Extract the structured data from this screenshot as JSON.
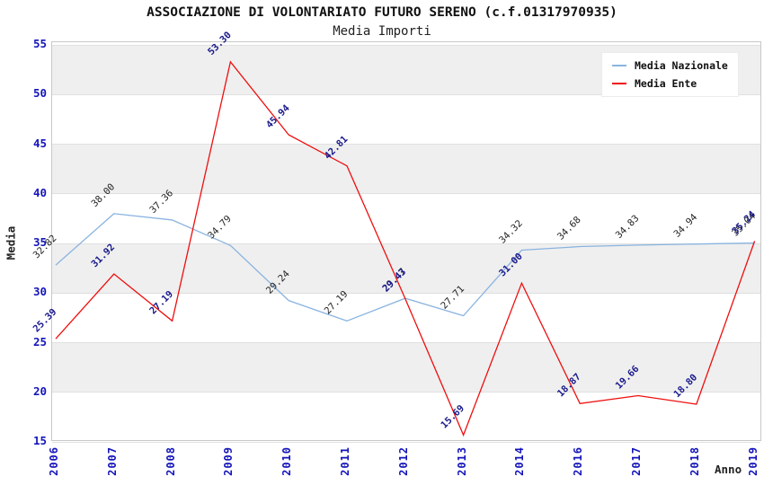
{
  "header": {
    "title": "ASSOCIAZIONE DI VOLONTARIATO FUTURO SERENO (c.f.01317970935)",
    "subtitle": "Media Importi"
  },
  "chart_data": {
    "type": "line",
    "title": "ASSOCIAZIONE DI VOLONTARIATO FUTURO SERENO (c.f.01317970935)",
    "subtitle": "Media Importi",
    "xlabel": "Anno",
    "ylabel": "Media",
    "ylim": [
      15,
      55
    ],
    "ytick_step": 5,
    "grid": true,
    "band_fill": "#efefef",
    "legend_position": "top-right",
    "categories": [
      "2006",
      "2007",
      "2008",
      "2009",
      "2010",
      "2011",
      "2012",
      "2013",
      "2014",
      "2016",
      "2017",
      "2018",
      "2019"
    ],
    "series": [
      {
        "name": "Media Nazionale",
        "color": "#8ab4e0",
        "label_color": "#222222",
        "label_bold": false,
        "values": [
          32.82,
          38.0,
          37.36,
          34.79,
          29.24,
          27.19,
          29.47,
          27.71,
          34.32,
          34.68,
          34.83,
          34.94,
          35.04
        ]
      },
      {
        "name": "Media Ente",
        "color": "#ee0f0f",
        "label_color": "#1a1a8c",
        "label_bold": true,
        "values": [
          25.39,
          31.92,
          27.19,
          53.3,
          45.94,
          42.81,
          29.43,
          15.69,
          31.0,
          18.87,
          19.66,
          18.8,
          35.24
        ]
      }
    ],
    "tick_color": "#1414bb"
  }
}
